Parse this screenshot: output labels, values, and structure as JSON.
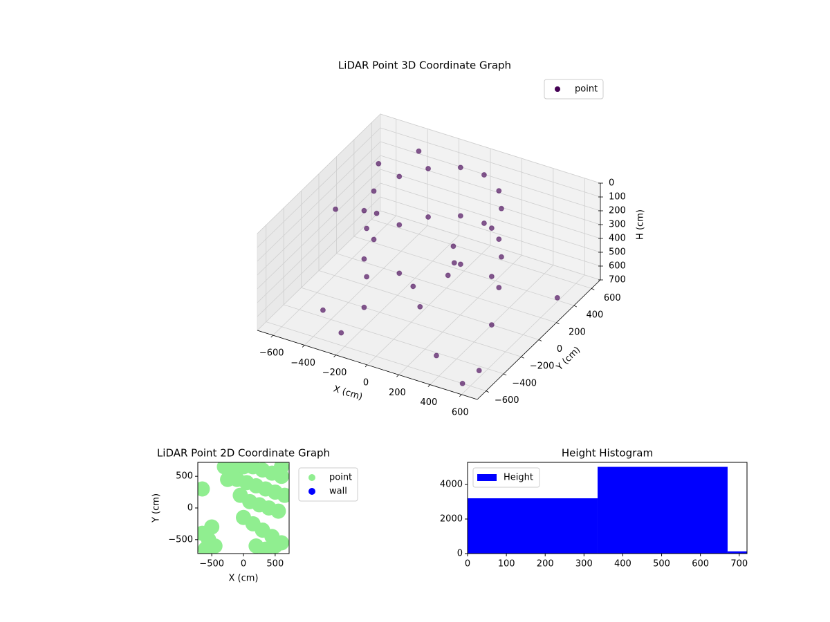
{
  "chart_data": [
    {
      "type": "scatter3d",
      "title": "LiDAR Point 3D Coordinate Graph",
      "xlabel": "X (cm)",
      "ylabel": "Y (cm)",
      "zlabel": "H (cm)",
      "xlim": [
        -700,
        700
      ],
      "ylim": [
        -700,
        700
      ],
      "zlim": [
        0,
        700
      ],
      "z_inverted": true,
      "xticks": [
        {
          "value": -600,
          "label": "−600"
        },
        {
          "value": -400,
          "label": "−400"
        },
        {
          "value": -200,
          "label": "−200"
        },
        0,
        200,
        400,
        600
      ],
      "yticks": [
        {
          "value": -600,
          "label": "−600"
        },
        {
          "value": -400,
          "label": "−400"
        },
        {
          "value": -200,
          "label": "−200"
        },
        0,
        200,
        400,
        600
      ],
      "zticks": [
        0,
        100,
        200,
        300,
        400,
        500,
        600,
        700
      ],
      "grid": true,
      "legend": "upper right",
      "series": [
        {
          "name": "point",
          "color": "#440154",
          "x": [
            400,
            350,
            250,
            100,
            -50,
            -200,
            -300,
            -350,
            -300,
            -200,
            400,
            350,
            250,
            100,
            -50,
            -200,
            -300,
            -350,
            -300,
            -200,
            400,
            250,
            -50,
            -300,
            -300,
            100,
            150,
            50,
            -100,
            0,
            -600,
            -500,
            -450,
            -400,
            -650,
            600,
            650,
            550,
            -250,
            300
          ],
          "y": [
            0,
            200,
            350,
            450,
            450,
            350,
            200,
            0,
            -200,
            -350,
            0,
            200,
            350,
            450,
            450,
            350,
            200,
            0,
            -200,
            -350,
            0,
            350,
            450,
            200,
            -200,
            100,
            -50,
            200,
            0,
            -100,
            500,
            300,
            -400,
            600,
            100,
            -500,
            300,
            -600,
            -550,
            -450
          ],
          "z": [
            0,
            0,
            0,
            0,
            0,
            0,
            0,
            0,
            0,
            0,
            350,
            350,
            350,
            350,
            350,
            350,
            350,
            350,
            350,
            350,
            700,
            700,
            700,
            700,
            700,
            300,
            400,
            500,
            600,
            650,
            200,
            400,
            650,
            100,
            300,
            650,
            600,
            700,
            650,
            680
          ]
        }
      ]
    },
    {
      "type": "scatter",
      "title": "LiDAR Point 2D Coordinate Graph",
      "xlabel": "X (cm)",
      "ylabel": "Y (cm)",
      "xlim": [
        -720,
        720
      ],
      "ylim": [
        -720,
        720
      ],
      "xticks": [
        {
          "value": -500,
          "label": "−500"
        },
        0,
        500
      ],
      "yticks": [
        {
          "value": -500,
          "label": "−500"
        },
        0,
        500
      ],
      "legend": "outside upper right",
      "series": [
        {
          "name": "point",
          "color": "#90ee90",
          "x": [
            -300,
            -150,
            0,
            150,
            300,
            450,
            600,
            -250,
            -100,
            50,
            200,
            350,
            500,
            650,
            -50,
            100,
            250,
            400,
            550,
            0,
            150,
            300,
            450,
            600,
            -650,
            -550,
            -450,
            -600,
            -500,
            200,
            350,
            500,
            -650,
            600
          ],
          "y": [
            650,
            650,
            650,
            650,
            600,
            550,
            500,
            450,
            450,
            400,
            350,
            300,
            250,
            200,
            200,
            100,
            50,
            0,
            -50,
            -150,
            -250,
            -350,
            -450,
            -550,
            -400,
            -500,
            -600,
            -650,
            -300,
            -600,
            -650,
            -600,
            300,
            650
          ]
        },
        {
          "name": "wall",
          "color": "#0000ff",
          "x": [],
          "y": []
        }
      ]
    },
    {
      "type": "histogram",
      "title": "Height Histogram",
      "bins": [
        0,
        335,
        670,
        1005
      ],
      "xlim": [
        0,
        720
      ],
      "ylim": [
        0,
        5280
      ],
      "xticks": [
        0,
        100,
        200,
        300,
        400,
        500,
        600,
        700
      ],
      "yticks": [
        0,
        2000,
        4000
      ],
      "legend": "upper left",
      "series": [
        {
          "name": "Height",
          "color": "#0000ff",
          "values": [
            3200,
            5020,
            130
          ]
        }
      ]
    }
  ]
}
